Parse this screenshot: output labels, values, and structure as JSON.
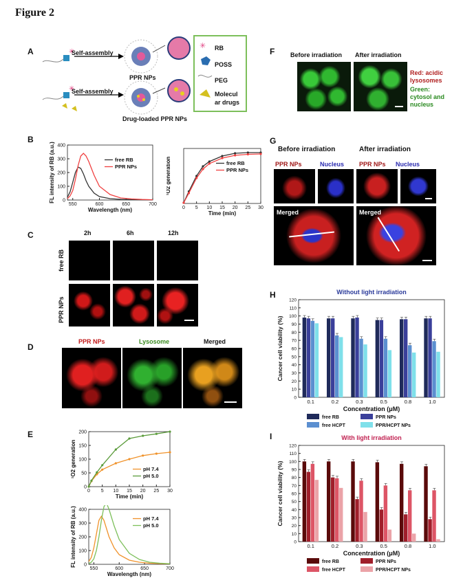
{
  "figure_title": "Figure 2",
  "panels": {
    "A": {
      "label": "A",
      "self_assembly_1": "Self-assembly",
      "self_assembly_2": "Self-assembly",
      "ppr_nps": "PPR NPs",
      "drug_loaded": "Drug-loaded PPR NPs",
      "legend": [
        "RB",
        "POSS",
        "PEG",
        "Molecul",
        "ar drugs"
      ]
    },
    "B": {
      "label": "B"
    },
    "C": {
      "label": "C",
      "times": [
        "2h",
        "6h",
        "12h"
      ],
      "rows": [
        "free RB",
        "PPR NPs"
      ]
    },
    "D": {
      "label": "D",
      "titles": [
        "PPR NPs",
        "Lysosome",
        "Merged"
      ]
    },
    "E": {
      "label": "E"
    },
    "F": {
      "label": "F",
      "before": "Before irradiation",
      "after": "After irradiation",
      "legend": [
        "Red: acidic",
        "lysosomes",
        "Green:",
        "cytosol and",
        "nucleus"
      ]
    },
    "G": {
      "label": "G",
      "before": "Before irradiation",
      "after": "After irradiation",
      "ppr": "PPR NPs",
      "nucleus": "Nucleus",
      "merged": "Merged"
    },
    "H": {
      "label": "H"
    },
    "I": {
      "label": "I"
    }
  },
  "chart_data": [
    {
      "id": "B-left",
      "type": "line",
      "ylabel": "FL intensity of RB (a.u.)",
      "xlabel": "Wavelength (nm)",
      "xlim": [
        540,
        700
      ],
      "ylim": [
        0,
        400
      ],
      "xticks": [
        550,
        600,
        650,
        700
      ],
      "yticks": [
        0,
        100,
        200,
        300,
        400
      ],
      "series": [
        {
          "name": "free RB",
          "color": "#333333",
          "x": [
            540,
            545,
            550,
            555,
            560,
            565,
            570,
            575,
            580,
            590,
            600,
            620,
            640,
            660,
            680,
            700
          ],
          "y": [
            20,
            60,
            130,
            200,
            240,
            230,
            190,
            140,
            100,
            50,
            25,
            10,
            5,
            3,
            2,
            1
          ]
        },
        {
          "name": "PPR NPs",
          "color": "#f04040",
          "x": [
            540,
            545,
            550,
            555,
            560,
            565,
            570,
            575,
            580,
            590,
            600,
            620,
            640,
            660,
            680,
            700
          ],
          "y": [
            10,
            30,
            70,
            150,
            250,
            320,
            340,
            320,
            280,
            180,
            100,
            40,
            15,
            8,
            4,
            2
          ]
        }
      ]
    },
    {
      "id": "B-right",
      "type": "line",
      "ylabel": "¹O2 generation",
      "xlabel": "Time (min)",
      "xlim": [
        0,
        30
      ],
      "ylim": [
        0,
        160
      ],
      "xticks": [
        0,
        5,
        10,
        15,
        20,
        25,
        30
      ],
      "yticks": [],
      "series": [
        {
          "name": "free RB",
          "color": "#333333",
          "x": [
            0,
            2,
            5,
            7.5,
            10,
            15,
            20,
            25,
            30
          ],
          "y": [
            2,
            35,
            80,
            108,
            122,
            138,
            146,
            148,
            148
          ]
        },
        {
          "name": "PPR NPs",
          "color": "#f04040",
          "x": [
            0,
            2,
            5,
            7.5,
            10,
            15,
            20,
            25,
            30
          ],
          "y": [
            2,
            30,
            74,
            100,
            116,
            132,
            140,
            143,
            144
          ]
        }
      ]
    },
    {
      "id": "E-top",
      "type": "line",
      "ylabel": "¹O2 generation",
      "xlabel": "Time (min)",
      "xlim": [
        0,
        30
      ],
      "ylim": [
        0,
        200
      ],
      "xticks": [
        0,
        5,
        10,
        15,
        20,
        25,
        30
      ],
      "yticks": [
        0,
        50,
        100,
        150,
        200
      ],
      "series": [
        {
          "name": "pH 7.4",
          "color": "#f0922a",
          "x": [
            0,
            1,
            3,
            5,
            10,
            15,
            20,
            25,
            30
          ],
          "y": [
            0,
            20,
            45,
            62,
            85,
            100,
            113,
            120,
            125
          ]
        },
        {
          "name": "pH 5.0",
          "color": "#5a9b3a",
          "x": [
            0,
            1,
            3,
            5,
            10,
            15,
            20,
            25,
            30
          ],
          "y": [
            0,
            22,
            52,
            78,
            135,
            175,
            185,
            192,
            200
          ]
        }
      ]
    },
    {
      "id": "E-bottom",
      "type": "line",
      "ylabel": "FL intensity of RB (a.u.)",
      "xlabel": "Wavelength (nm)",
      "xlim": [
        540,
        700
      ],
      "ylim": [
        0,
        400
      ],
      "xticks": [
        550,
        600,
        650,
        700
      ],
      "yticks": [
        0,
        100,
        200,
        300,
        400
      ],
      "series": [
        {
          "name": "pH 7.4",
          "color": "#f0922a",
          "x": [
            540,
            545,
            550,
            555,
            560,
            565,
            570,
            575,
            580,
            590,
            600,
            620,
            640,
            660,
            680,
            700
          ],
          "y": [
            20,
            50,
            120,
            220,
            320,
            350,
            320,
            260,
            200,
            120,
            70,
            30,
            15,
            8,
            5,
            3
          ]
        },
        {
          "name": "pH 5.0",
          "color": "#7cbf5a",
          "x": [
            540,
            545,
            550,
            555,
            560,
            565,
            570,
            575,
            580,
            590,
            600,
            620,
            640,
            660,
            680,
            700
          ],
          "y": [
            5,
            15,
            40,
            100,
            200,
            320,
            420,
            445,
            400,
            280,
            180,
            80,
            35,
            15,
            8,
            4
          ]
        }
      ]
    },
    {
      "id": "H",
      "type": "bar",
      "title": "Without light irradiation",
      "ylabel": "Cancer cell viability (%)",
      "xlabel": "Concentration (μM)",
      "ylim": [
        0,
        120
      ],
      "yticks": [
        0,
        10,
        20,
        30,
        40,
        50,
        60,
        70,
        80,
        90,
        100,
        110,
        120
      ],
      "categories": [
        "0.1",
        "0.2",
        "0.3",
        "0.5",
        "0.8",
        "1.0"
      ],
      "series": [
        {
          "name": "free RB",
          "color": "#1f2a5a",
          "values": [
            98,
            97,
            97,
            95,
            96,
            97
          ]
        },
        {
          "name": "PPR NPs",
          "color": "#3a3f9a",
          "values": [
            97,
            97,
            98,
            95,
            96,
            97
          ]
        },
        {
          "name": "free HCPT",
          "color": "#5b8fd0",
          "values": [
            94,
            76,
            72,
            72,
            64,
            69
          ]
        },
        {
          "name": "PPR/HCPT NPs",
          "color": "#7fe0ea",
          "values": [
            91,
            74,
            65,
            58,
            55,
            56
          ]
        }
      ]
    },
    {
      "id": "I",
      "type": "bar",
      "title": "With light irradiation",
      "ylabel": "Cancer cell viability (%)",
      "xlabel": "Concentration (μM)",
      "ylim": [
        0,
        120
      ],
      "yticks": [
        0,
        10,
        20,
        30,
        40,
        50,
        60,
        70,
        80,
        90,
        100,
        110,
        120
      ],
      "categories": [
        "0.1",
        "0.2",
        "0.3",
        "0.5",
        "0.8",
        "1.0"
      ],
      "series": [
        {
          "name": "free RB",
          "color": "#5a0a0a",
          "values": [
            100,
            100,
            100,
            99,
            97,
            94
          ]
        },
        {
          "name": "PPR NPs",
          "color": "#a01e2a",
          "values": [
            87,
            80,
            53,
            40,
            34,
            28
          ]
        },
        {
          "name": "free HCPT",
          "color": "#dd5566",
          "values": [
            97,
            79,
            76,
            70,
            64,
            64
          ]
        },
        {
          "name": "PPR/HCPT NPs",
          "color": "#eba3a8",
          "values": [
            77,
            67,
            37,
            15,
            10,
            3
          ]
        }
      ]
    }
  ]
}
